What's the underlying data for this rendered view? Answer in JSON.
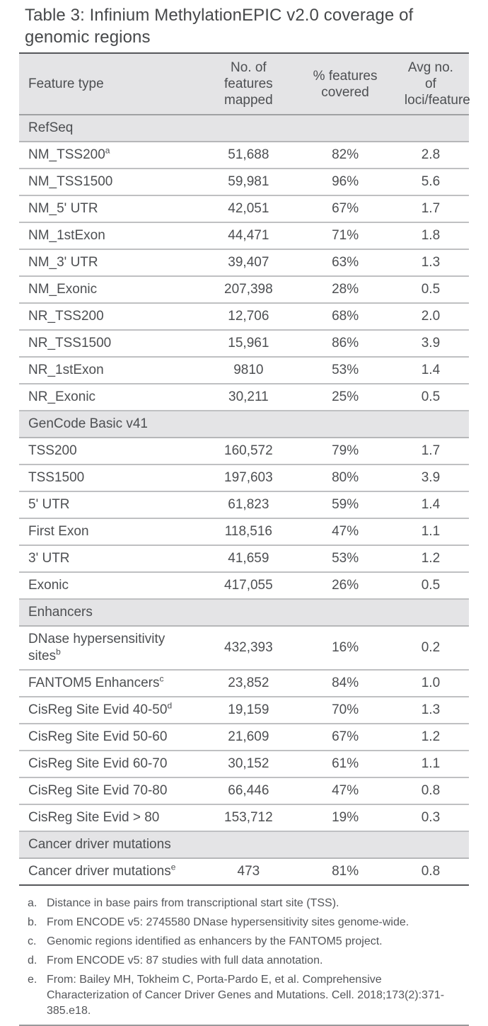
{
  "title": "Table 3: Infinium MethylationEPIC v2.0 coverage of genomic regions",
  "colors": {
    "band_gray": "#e4e4e6",
    "dark_rule": "#56575b",
    "row_rule": "#bfc0c2",
    "text": "#4d4f52",
    "background": "#ffffff"
  },
  "table": {
    "columns": [
      "Feature type",
      "No. of features mapped",
      "% features covered",
      "Avg no. of loci/feature"
    ],
    "sections": [
      {
        "name": "RefSeq",
        "rows": [
          {
            "label": "NM_TSS200",
            "sup": "a",
            "mapped": "51,688",
            "covered": "82%",
            "avg": "2.8"
          },
          {
            "label": "NM_TSS1500",
            "sup": "",
            "mapped": "59,981",
            "covered": "96%",
            "avg": "5.6"
          },
          {
            "label": "NM_5' UTR",
            "sup": "",
            "mapped": "42,051",
            "covered": "67%",
            "avg": "1.7"
          },
          {
            "label": "NM_1stExon",
            "sup": "",
            "mapped": "44,471",
            "covered": "71%",
            "avg": "1.8"
          },
          {
            "label": "NM_3' UTR",
            "sup": "",
            "mapped": "39,407",
            "covered": "63%",
            "avg": "1.3"
          },
          {
            "label": "NM_Exonic",
            "sup": "",
            "mapped": "207,398",
            "covered": "28%",
            "avg": "0.5"
          },
          {
            "label": "NR_TSS200",
            "sup": "",
            "mapped": "12,706",
            "covered": "68%",
            "avg": "2.0"
          },
          {
            "label": "NR_TSS1500",
            "sup": "",
            "mapped": "15,961",
            "covered": "86%",
            "avg": "3.9"
          },
          {
            "label": "NR_1stExon",
            "sup": "",
            "mapped": "9810",
            "covered": "53%",
            "avg": "1.4"
          },
          {
            "label": "NR_Exonic",
            "sup": "",
            "mapped": "30,211",
            "covered": "25%",
            "avg": "0.5"
          }
        ]
      },
      {
        "name": "GenCode Basic v41",
        "rows": [
          {
            "label": "TSS200",
            "sup": "",
            "mapped": "160,572",
            "covered": "79%",
            "avg": "1.7"
          },
          {
            "label": "TSS1500",
            "sup": "",
            "mapped": "197,603",
            "covered": "80%",
            "avg": "3.9"
          },
          {
            "label": "5' UTR",
            "sup": "",
            "mapped": "61,823",
            "covered": "59%",
            "avg": "1.4"
          },
          {
            "label": "First Exon",
            "sup": "",
            "mapped": "118,516",
            "covered": "47%",
            "avg": "1.1"
          },
          {
            "label": "3' UTR",
            "sup": "",
            "mapped": "41,659",
            "covered": "53%",
            "avg": "1.2"
          },
          {
            "label": "Exonic",
            "sup": "",
            "mapped": "417,055",
            "covered": "26%",
            "avg": "0.5"
          }
        ]
      },
      {
        "name": "Enhancers",
        "rows": [
          {
            "label": "DNase hypersensitivity sites",
            "sup": "b",
            "mapped": "432,393",
            "covered": "16%",
            "avg": "0.2"
          },
          {
            "label": "FANTOM5 Enhancers",
            "sup": "c",
            "mapped": "23,852",
            "covered": "84%",
            "avg": "1.0"
          },
          {
            "label": "CisReg Site Evid 40-50",
            "sup": "d",
            "mapped": "19,159",
            "covered": "70%",
            "avg": "1.3"
          },
          {
            "label": "CisReg Site Evid 50-60",
            "sup": "",
            "mapped": "21,609",
            "covered": "67%",
            "avg": "1.2"
          },
          {
            "label": "CisReg Site Evid 60-70",
            "sup": "",
            "mapped": "30,152",
            "covered": "61%",
            "avg": "1.1"
          },
          {
            "label": "CisReg Site Evid 70-80",
            "sup": "",
            "mapped": "66,446",
            "covered": "47%",
            "avg": "0.8"
          },
          {
            "label": "CisReg Site Evid > 80",
            "sup": "",
            "mapped": "153,712",
            "covered": "19%",
            "avg": "0.3"
          }
        ]
      },
      {
        "name": "Cancer driver mutations",
        "rows": [
          {
            "label": "Cancer driver mutations",
            "sup": "e",
            "mapped": "473",
            "covered": "81%",
            "avg": "0.8"
          }
        ]
      }
    ]
  },
  "footnotes": [
    {
      "label": "a.",
      "text": "Distance in base pairs from transcriptional start site (TSS)."
    },
    {
      "label": "b.",
      "text": "From ENCODE v5: 2745580 DNase hypersensitivity sites genome-wide."
    },
    {
      "label": "c.",
      "text": "Genomic regions identified as enhancers by the FANTOM5 project."
    },
    {
      "label": "d.",
      "text": "From ENCODE v5: 87 studies with full data annotation."
    },
    {
      "label": "e.",
      "text": "From: Bailey MH, Tokheim C, Porta-Pardo E, et al. Comprehensive Characterization of Cancer Driver Genes and Mutations. Cell. 2018;173(2):371-385.e18."
    }
  ]
}
